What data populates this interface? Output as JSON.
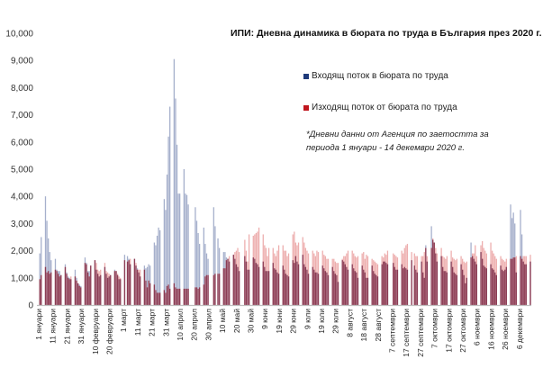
{
  "chart_data": {
    "type": "bar",
    "title": "ИПИ: Дневна динамика в бюрата по труда в България през 2020 г.",
    "note_line1": "*Дневни данни от Агенция по заетостта за",
    "note_line2": "периода 1 януари - 14 декември 2020 г.",
    "ylim": [
      0,
      10000
    ],
    "yticks": [
      "0",
      "1,000",
      "2,000",
      "3,000",
      "4,000",
      "5,000",
      "6,000",
      "7,000",
      "8,000",
      "9,000",
      "10,000"
    ],
    "xticks": [
      "1 януари",
      "11 януари",
      "21 януари",
      "31 януари",
      "10 февруари",
      "20 февруари",
      "1 март",
      "11 март",
      "21 март",
      "31 март",
      "10 април",
      "20 април",
      "30 април",
      "10 май",
      "20 май",
      "30 май",
      "9 юни",
      "19 юни",
      "29 юни",
      "9 юли",
      "19 юли",
      "29 юли",
      "8 август",
      "18 август",
      "28 август",
      "7 септември",
      "17 септември",
      "27 септември",
      "7 октомври",
      "17 октомври",
      "27 октомври",
      "6 ноември",
      "16 ноември",
      "26 ноември",
      "6 декември"
    ],
    "x_start": "2020-01-01",
    "x_end": "2020-12-14",
    "x_note": "values listed per week (Mon–Fri) starting week of 30 Dec 2019; weekends not shown",
    "legend_position": "top-right",
    "grid": false,
    "series": [
      {
        "name": "Входящ поток в бюрата по труда",
        "color": "#1f3a7a",
        "bar_color": "#a6b0cc",
        "weeks": [
          [
            null,
            null,
            0,
            1900,
            2500
          ],
          [
            4000,
            3100,
            2450,
            1950,
            1650
          ],
          [
            1700,
            1300,
            1250,
            1250,
            1100
          ],
          [
            1500,
            1200,
            1050,
            1000,
            950
          ],
          [
            1300,
            1000,
            800,
            750,
            700
          ],
          [
            1750,
            1550,
            1250,
            1250,
            1450
          ],
          [
            1650,
            1300,
            1150,
            1050,
            1100
          ],
          [
            1400,
            1150,
            1000,
            1050,
            1100
          ],
          [
            1300,
            1250,
            1100,
            950,
            950
          ],
          [
            1850,
            0,
            1800,
            1700,
            1500
          ],
          [
            1700,
            1450,
            1350,
            1200,
            1050
          ],
          [
            1450,
            1350,
            1400,
            1500,
            1450
          ],
          [
            2300,
            2200,
            2550,
            2850,
            2750
          ],
          [
            3900,
            3500,
            4800,
            6200,
            7300
          ],
          [
            9050,
            7600,
            5900,
            4100,
            4100
          ],
          [
            5000,
            4100,
            4050,
            3700,
            0
          ],
          [
            0,
            3600,
            3100,
            2650,
            2250
          ],
          [
            2850,
            2250,
            1900,
            1700,
            0
          ],
          [
            3600,
            2900,
            0,
            2450,
            2100
          ],
          [
            1950,
            1950,
            1750,
            1700,
            1600
          ],
          [
            1850,
            1700,
            1500,
            1400,
            1250
          ],
          [
            0,
            1800,
            1600,
            1300,
            1300
          ],
          [
            1750,
            1700,
            1550,
            1500,
            1400
          ],
          [
            1600,
            1400,
            1250,
            1250,
            1250
          ],
          [
            1550,
            1350,
            1300,
            1200,
            1150
          ],
          [
            1450,
            1300,
            1150,
            1100,
            1050
          ],
          [
            1650,
            1550,
            1800,
            1600,
            1500
          ],
          [
            1850,
            1500,
            1400,
            1300,
            1150
          ],
          [
            1400,
            1300,
            1200,
            1200,
            1150
          ],
          [
            1450,
            1350,
            1250,
            1200,
            1100
          ],
          [
            1400,
            1250,
            1150,
            1100,
            850
          ],
          [
            1650,
            1600,
            1500,
            1400,
            1300
          ],
          [
            1500,
            1350,
            1250,
            1200,
            1000
          ],
          [
            1450,
            1300,
            1200,
            1000,
            1000
          ],
          [
            1450,
            1250,
            1150,
            1100,
            1050
          ],
          [
            1500,
            1600,
            1600,
            1550,
            1500
          ],
          [
            0,
            1550,
            1400,
            1300,
            1300
          ],
          [
            1500,
            1350,
            1400,
            1350,
            1300
          ],
          [
            1650,
            0,
            1450,
            1300,
            1200
          ],
          [
            1600,
            1200,
            1000,
            2200,
            1600
          ],
          [
            2900,
            2400,
            2300,
            1900,
            1600
          ],
          [
            1800,
            1400,
            1250,
            1250,
            1200
          ],
          [
            1600,
            1400,
            1200,
            1150,
            1100
          ],
          [
            1500,
            1300,
            1100,
            800,
            1000
          ],
          [
            2300,
            1800,
            1700,
            1600,
            1500
          ],
          [
            1950,
            1700,
            1450,
            1400,
            1350
          ],
          [
            1500,
            1350,
            1300,
            1200,
            1100
          ],
          [
            1450,
            1300,
            1250,
            1300,
            1400
          ],
          [
            3700,
            3200,
            3400,
            3000,
            1200
          ],
          [
            3500,
            2600,
            1600,
            1500,
            1500
          ],
          [
            1600,
            null,
            null,
            null,
            null
          ]
        ]
      },
      {
        "name": "Изходящ поток от бюрата по труда",
        "color": "#c0161e",
        "bar_color": "#eba5a5",
        "weeks": [
          [
            null,
            null,
            0,
            950,
            1100
          ],
          [
            1400,
            1200,
            1250,
            1150,
            1200
          ],
          [
            1300,
            1250,
            1150,
            1050,
            1100
          ],
          [
            1400,
            1150,
            1000,
            950,
            1050
          ],
          [
            1050,
            900,
            800,
            700,
            650
          ],
          [
            1550,
            1500,
            1200,
            1050,
            1450
          ],
          [
            1650,
            1550,
            1300,
            1250,
            1300
          ],
          [
            1550,
            1250,
            1200,
            1150,
            1100
          ],
          [
            1250,
            1250,
            1150,
            1050,
            1000
          ],
          [
            1650,
            0,
            1600,
            1650,
            1700
          ],
          [
            1700,
            1550,
            1300,
            1300,
            1300
          ],
          [
            1300,
            900,
            650,
            900,
            800
          ],
          [
            750,
            550,
            450,
            450,
            450
          ],
          [
            550,
            450,
            700,
            750,
            600
          ],
          [
            800,
            650,
            600,
            600,
            600
          ],
          [
            600,
            600,
            600,
            600,
            0
          ],
          [
            0,
            650,
            650,
            600,
            650
          ],
          [
            750,
            1050,
            1100,
            1100,
            0
          ],
          [
            1100,
            1150,
            0,
            1150,
            1150
          ],
          [
            1350,
            1350,
            1650,
            1700,
            1800
          ],
          [
            1850,
            1950,
            2000,
            2100,
            1950
          ],
          [
            0,
            2400,
            2000,
            1600,
            2600
          ],
          [
            2550,
            2600,
            2650,
            2700,
            2850
          ],
          [
            2600,
            2200,
            2100,
            1800,
            2100
          ],
          [
            2100,
            1900,
            1800,
            2000,
            2200
          ],
          [
            2200,
            2000,
            2000,
            1800,
            1900
          ],
          [
            2600,
            2700,
            2300,
            2200,
            2300
          ],
          [
            2500,
            2300,
            2100,
            2000,
            1900
          ],
          [
            2000,
            1900,
            1800,
            2000,
            1950
          ],
          [
            2000,
            1850,
            1800,
            1700,
            1700
          ],
          [
            1700,
            1700,
            1600,
            1550,
            1550
          ],
          [
            1700,
            1800,
            1800,
            1900,
            2000
          ],
          [
            2000,
            1900,
            1800,
            1750,
            1800
          ],
          [
            1900,
            1950,
            1700,
            1850,
            1800
          ],
          [
            1700,
            1650,
            1600,
            1550,
            1500
          ],
          [
            1800,
            1750,
            1900,
            1850,
            2000
          ],
          [
            0,
            1900,
            1850,
            1800,
            1750
          ],
          [
            2000,
            1900,
            2100,
            2200,
            2250
          ],
          [
            1950,
            0,
            1900,
            1800,
            1800
          ],
          [
            1800,
            1800,
            1950,
            2100,
            1800
          ],
          [
            2100,
            2450,
            2300,
            2100,
            1900
          ],
          [
            2100,
            1800,
            1750,
            1700,
            1800
          ],
          [
            2000,
            1750,
            1700,
            1650,
            1700
          ],
          [
            1800,
            1700,
            1600,
            1550,
            1600
          ],
          [
            1750,
            1900,
            1900,
            2200,
            1800
          ],
          [
            2200,
            2350,
            2100,
            2000,
            1900
          ],
          [
            2300,
            2000,
            1900,
            1800,
            1700
          ],
          [
            1800,
            1700,
            1650,
            1600,
            1700
          ],
          [
            1700,
            1700,
            1750,
            1750,
            1800
          ],
          [
            1800,
            1700,
            1800,
            1800,
            1800
          ],
          [
            1850,
            null,
            null,
            null,
            null
          ]
        ]
      }
    ]
  }
}
